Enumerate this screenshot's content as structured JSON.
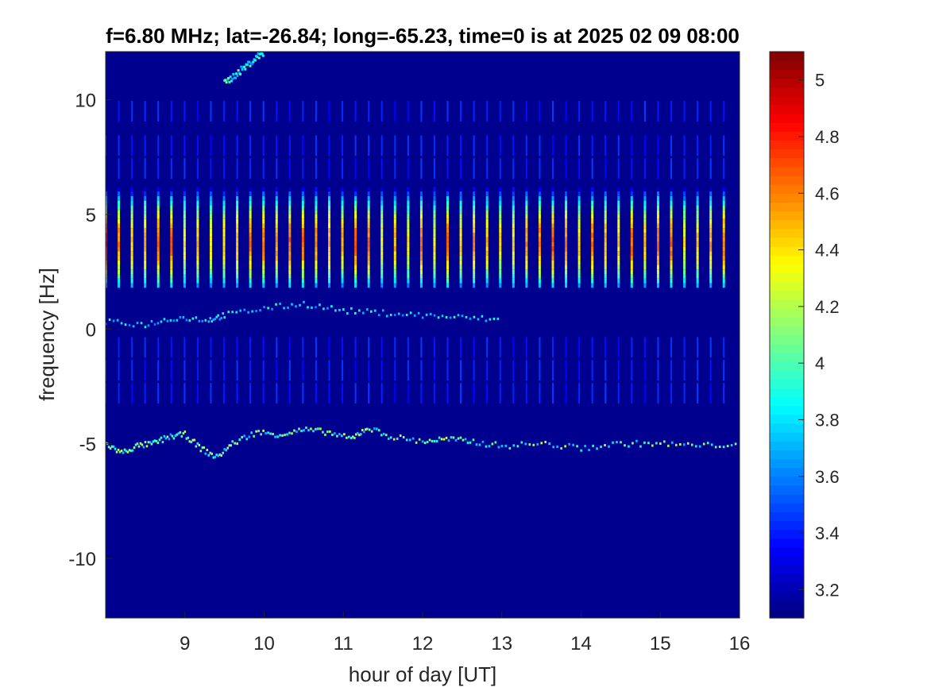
{
  "chart_data": {
    "type": "heatmap",
    "title": "f=6.80 MHz;  lat=-26.84; long=-65.23, time=0 is at 2025 02 09 08:00",
    "xlabel": "hour of day [UT]",
    "ylabel": "frequency [Hz]",
    "xlim": [
      8,
      16
    ],
    "ylim": [
      -12.6,
      12.1
    ],
    "xticks": [
      9,
      10,
      11,
      12,
      13,
      14,
      15,
      16
    ],
    "yticks": [
      10,
      5,
      0,
      -5,
      -10
    ],
    "colorbar": {
      "clim": [
        3.1,
        5.1
      ],
      "ticks": [
        5,
        4.8,
        4.6,
        4.4,
        4.2,
        4,
        3.8,
        3.6,
        3.4,
        3.2
      ],
      "colormap": "jet"
    },
    "background_color": "#00008F",
    "features": {
      "pulse_stripes": {
        "x_start": 8.0,
        "x_end": 15.85,
        "spacing_hours": 0.166,
        "main_band_hz": [
          1.8,
          6.2
        ],
        "peak_level": 4.6
      },
      "weak_harmonics_hz": [
        9.5,
        8.0,
        7.0,
        -0.8,
        -1.8,
        -2.8
      ],
      "trace_near_zero": [
        [
          8.0,
          0.3
        ],
        [
          8.5,
          0.2
        ],
        [
          8.9,
          0.5
        ],
        [
          9.3,
          0.4
        ],
        [
          9.5,
          0.6
        ],
        [
          10.0,
          0.9
        ],
        [
          10.5,
          1.1
        ],
        [
          11.0,
          0.8
        ],
        [
          11.5,
          0.7
        ],
        [
          12.0,
          0.6
        ],
        [
          12.5,
          0.5
        ],
        [
          13.0,
          0.4
        ]
      ],
      "trace_near_minus5": [
        [
          8.0,
          -5.0
        ],
        [
          8.2,
          -5.4
        ],
        [
          8.4,
          -5.1
        ],
        [
          8.6,
          -5.0
        ],
        [
          8.8,
          -4.7
        ],
        [
          9.0,
          -4.6
        ],
        [
          9.2,
          -5.2
        ],
        [
          9.4,
          -5.6
        ],
        [
          9.6,
          -5.0
        ],
        [
          9.9,
          -4.5
        ],
        [
          10.2,
          -4.6
        ],
        [
          10.5,
          -4.4
        ],
        [
          10.8,
          -4.5
        ],
        [
          11.1,
          -4.8
        ],
        [
          11.3,
          -4.3
        ],
        [
          11.6,
          -4.7
        ],
        [
          12.0,
          -4.9
        ],
        [
          12.3,
          -4.8
        ],
        [
          12.6,
          -4.9
        ],
        [
          13.0,
          -5.1
        ],
        [
          13.5,
          -5.0
        ],
        [
          14.0,
          -5.2
        ],
        [
          14.5,
          -5.0
        ],
        [
          15.0,
          -5.0
        ],
        [
          15.5,
          -5.1
        ],
        [
          16.0,
          -5.0
        ]
      ],
      "diagonal_streak": [
        [
          9.5,
          10.7
        ],
        [
          10.0,
          12.1
        ]
      ]
    }
  }
}
